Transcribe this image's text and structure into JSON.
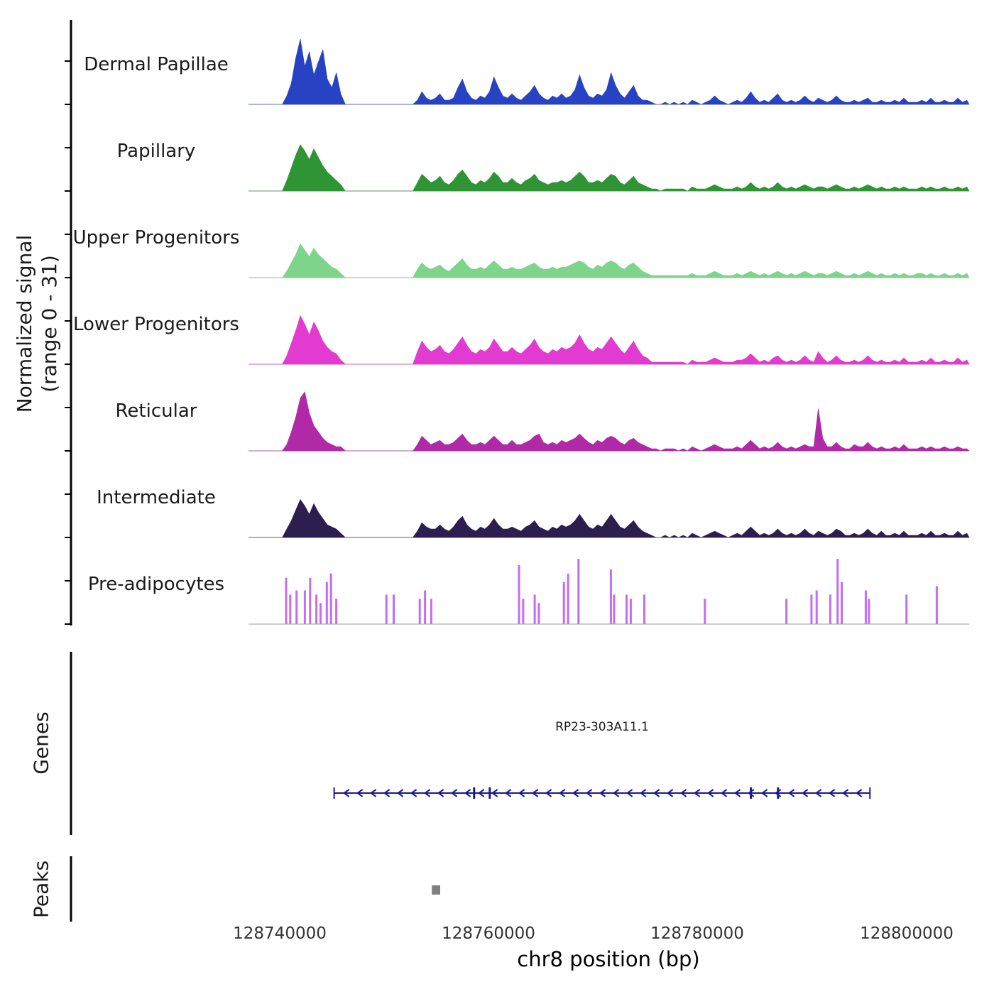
{
  "axis_left": {
    "label_line1": "Normalized signal",
    "label_line2": "(range 0 - 31)",
    "genes_label": "Genes",
    "peaks_label": "Peaks"
  },
  "x_axis": {
    "label": "chr8 position (bp)",
    "ticks": [
      128740000,
      128760000,
      128780000,
      128800000
    ],
    "tick_labels": [
      "128740000",
      "128760000",
      "128780000",
      "128800000"
    ],
    "xlim": [
      128737000,
      128806000
    ]
  },
  "chart_data": {
    "type": "area",
    "subtype": "genome-signal-tracks",
    "chromosome": "chr8",
    "x_start": 128737000,
    "x_end": 128806000,
    "bins": 160,
    "ylim": [
      0,
      31
    ],
    "tracks": [
      {
        "name": "Dermal Papillae",
        "color": "#2743c3",
        "values": [
          0,
          0,
          0,
          0,
          0,
          0,
          0,
          0,
          4,
          10,
          22,
          31,
          18,
          25,
          14,
          20,
          26,
          12,
          8,
          15,
          5,
          0,
          0,
          0,
          0,
          0,
          0,
          0,
          0,
          0,
          0,
          0,
          0,
          0,
          0,
          0,
          0,
          2,
          6,
          3,
          2,
          3,
          5,
          2,
          2,
          3,
          8,
          12,
          6,
          3,
          2,
          4,
          3,
          6,
          13,
          8,
          4,
          3,
          5,
          3,
          2,
          4,
          6,
          9,
          5,
          3,
          2,
          4,
          3,
          5,
          3,
          4,
          7,
          14,
          8,
          4,
          3,
          5,
          4,
          7,
          15,
          9,
          5,
          3,
          6,
          9,
          4,
          2,
          2,
          1,
          0,
          0,
          1,
          0,
          1,
          0,
          1,
          0,
          2,
          1,
          0,
          1,
          2,
          4,
          2,
          1,
          0,
          1,
          2,
          1,
          3,
          6,
          3,
          1,
          2,
          1,
          3,
          5,
          2,
          1,
          2,
          1,
          2,
          4,
          2,
          1,
          3,
          2,
          1,
          2,
          4,
          2,
          1,
          1,
          2,
          1,
          2,
          3,
          1,
          1,
          2,
          1,
          1,
          2,
          1,
          3,
          1,
          1,
          1,
          2,
          1,
          3,
          1,
          1,
          2,
          1,
          1,
          3,
          1,
          2
        ]
      },
      {
        "name": "Papillary",
        "color": "#2e9434",
        "values": [
          0,
          0,
          0,
          0,
          0,
          0,
          0,
          0,
          5,
          11,
          17,
          22,
          19,
          15,
          20,
          16,
          12,
          9,
          7,
          5,
          3,
          0,
          0,
          0,
          0,
          0,
          0,
          0,
          0,
          0,
          0,
          0,
          0,
          0,
          0,
          0,
          0,
          4,
          8,
          6,
          4,
          5,
          7,
          4,
          3,
          5,
          8,
          10,
          7,
          4,
          3,
          5,
          4,
          6,
          9,
          7,
          4,
          4,
          6,
          4,
          3,
          5,
          6,
          8,
          5,
          4,
          3,
          4,
          4,
          5,
          4,
          5,
          7,
          9,
          7,
          4,
          4,
          5,
          4,
          6,
          8,
          7,
          4,
          3,
          5,
          7,
          4,
          3,
          2,
          1,
          1,
          0,
          1,
          1,
          1,
          1,
          1,
          0,
          2,
          1,
          1,
          1,
          2,
          3,
          2,
          1,
          1,
          1,
          2,
          1,
          2,
          4,
          2,
          1,
          2,
          1,
          2,
          4,
          2,
          1,
          2,
          1,
          2,
          3,
          2,
          1,
          2,
          2,
          1,
          2,
          3,
          2,
          1,
          1,
          2,
          1,
          2,
          3,
          2,
          1,
          2,
          1,
          1,
          2,
          1,
          2,
          1,
          1,
          1,
          2,
          1,
          2,
          1,
          1,
          2,
          1,
          1,
          2,
          1,
          2
        ]
      },
      {
        "name": "Upper Progenitors",
        "color": "#7ed48a",
        "values": [
          0,
          0,
          0,
          0,
          0,
          0,
          0,
          0,
          3,
          7,
          11,
          16,
          13,
          10,
          14,
          11,
          9,
          7,
          5,
          4,
          2,
          0,
          0,
          0,
          0,
          0,
          0,
          0,
          0,
          0,
          0,
          0,
          0,
          0,
          0,
          0,
          0,
          4,
          7,
          5,
          4,
          5,
          6,
          4,
          3,
          5,
          7,
          9,
          6,
          4,
          4,
          5,
          4,
          6,
          8,
          6,
          4,
          4,
          5,
          4,
          4,
          5,
          6,
          7,
          5,
          4,
          4,
          5,
          4,
          5,
          5,
          6,
          7,
          8,
          7,
          5,
          4,
          6,
          5,
          7,
          8,
          7,
          5,
          4,
          6,
          7,
          5,
          3,
          2,
          1,
          1,
          1,
          1,
          1,
          1,
          1,
          1,
          1,
          2,
          1,
          1,
          1,
          2,
          3,
          2,
          1,
          1,
          1,
          2,
          1,
          2,
          3,
          2,
          1,
          2,
          1,
          2,
          3,
          2,
          1,
          2,
          1,
          2,
          3,
          2,
          1,
          2,
          2,
          1,
          2,
          3,
          2,
          1,
          1,
          2,
          1,
          2,
          3,
          2,
          1,
          2,
          1,
          1,
          2,
          1,
          2,
          1,
          1,
          2,
          2,
          1,
          2,
          1,
          1,
          2,
          1,
          1,
          2,
          1,
          2
        ]
      },
      {
        "name": "Lower Progenitors",
        "color": "#e33ad2",
        "values": [
          0,
          0,
          0,
          0,
          0,
          0,
          0,
          0,
          4,
          10,
          16,
          23,
          19,
          14,
          20,
          16,
          11,
          8,
          6,
          5,
          2,
          0,
          0,
          0,
          0,
          0,
          0,
          0,
          0,
          0,
          0,
          0,
          0,
          0,
          0,
          0,
          0,
          6,
          11,
          8,
          6,
          7,
          9,
          6,
          5,
          7,
          10,
          13,
          9,
          6,
          5,
          7,
          6,
          8,
          12,
          9,
          6,
          6,
          8,
          6,
          5,
          7,
          9,
          12,
          8,
          6,
          5,
          7,
          6,
          8,
          7,
          8,
          10,
          14,
          10,
          7,
          6,
          8,
          7,
          10,
          13,
          10,
          7,
          5,
          8,
          11,
          7,
          4,
          3,
          1,
          1,
          1,
          1,
          1,
          1,
          1,
          1,
          0,
          2,
          1,
          1,
          1,
          2,
          3,
          2,
          1,
          1,
          1,
          2,
          2,
          3,
          5,
          3,
          1,
          2,
          1,
          3,
          4,
          2,
          1,
          2,
          1,
          2,
          4,
          2,
          1,
          6,
          3,
          1,
          2,
          4,
          2,
          1,
          1,
          2,
          1,
          2,
          4,
          2,
          1,
          2,
          1,
          1,
          2,
          1,
          3,
          1,
          1,
          1,
          2,
          1,
          3,
          1,
          1,
          2,
          1,
          1,
          3,
          1,
          2
        ]
      },
      {
        "name": "Reticular",
        "color": "#b02aa8",
        "values": [
          0,
          0,
          0,
          0,
          0,
          0,
          0,
          0,
          3,
          9,
          16,
          25,
          28,
          18,
          12,
          9,
          6,
          4,
          3,
          2,
          2,
          0,
          0,
          0,
          0,
          0,
          0,
          0,
          0,
          0,
          0,
          0,
          0,
          0,
          0,
          0,
          0,
          3,
          7,
          5,
          3,
          4,
          5,
          3,
          3,
          4,
          6,
          8,
          5,
          3,
          3,
          4,
          3,
          5,
          7,
          5,
          3,
          3,
          5,
          3,
          3,
          4,
          5,
          7,
          8,
          4,
          3,
          4,
          3,
          5,
          4,
          5,
          6,
          8,
          6,
          4,
          3,
          5,
          4,
          6,
          7,
          6,
          4,
          3,
          5,
          6,
          4,
          3,
          2,
          1,
          1,
          0,
          1,
          1,
          1,
          0,
          1,
          0,
          2,
          1,
          0,
          1,
          2,
          3,
          2,
          1,
          1,
          1,
          2,
          1,
          3,
          5,
          3,
          1,
          2,
          1,
          2,
          4,
          2,
          1,
          2,
          1,
          2,
          3,
          2,
          2,
          20,
          6,
          2,
          2,
          4,
          2,
          1,
          1,
          3,
          2,
          2,
          4,
          2,
          1,
          2,
          1,
          1,
          2,
          1,
          3,
          1,
          1,
          1,
          2,
          1,
          2,
          1,
          1,
          2,
          1,
          1,
          2,
          1,
          1
        ]
      },
      {
        "name": "Intermediate",
        "color": "#2c1e4f",
        "values": [
          0,
          0,
          0,
          0,
          0,
          0,
          0,
          0,
          4,
          8,
          13,
          18,
          15,
          11,
          16,
          12,
          9,
          6,
          5,
          4,
          2,
          0,
          0,
          0,
          0,
          0,
          0,
          0,
          0,
          0,
          0,
          0,
          0,
          0,
          0,
          0,
          0,
          3,
          7,
          5,
          4,
          4,
          6,
          4,
          3,
          5,
          8,
          10,
          6,
          4,
          3,
          5,
          4,
          6,
          9,
          6,
          4,
          4,
          5,
          4,
          3,
          5,
          6,
          8,
          5,
          4,
          3,
          5,
          4,
          6,
          5,
          6,
          8,
          11,
          8,
          5,
          4,
          6,
          5,
          8,
          11,
          8,
          5,
          4,
          6,
          8,
          5,
          3,
          2,
          1,
          0,
          0,
          1,
          0,
          1,
          0,
          1,
          0,
          2,
          1,
          0,
          1,
          2,
          3,
          2,
          1,
          0,
          1,
          2,
          1,
          3,
          5,
          3,
          1,
          2,
          1,
          2,
          4,
          2,
          1,
          2,
          1,
          2,
          4,
          2,
          1,
          3,
          2,
          1,
          2,
          4,
          3,
          1,
          1,
          2,
          1,
          2,
          4,
          2,
          1,
          3,
          1,
          1,
          2,
          1,
          3,
          1,
          1,
          1,
          2,
          1,
          3,
          1,
          1,
          2,
          1,
          1,
          3,
          1,
          2
        ]
      },
      {
        "name": "Pre-adipocytes",
        "color": "#c46cf2",
        "style": "spikes",
        "spikes": [
          [
            128740600,
            22
          ],
          [
            128741000,
            14
          ],
          [
            128741600,
            16
          ],
          [
            128742400,
            16
          ],
          [
            128742900,
            22
          ],
          [
            128743500,
            14
          ],
          [
            128743900,
            10
          ],
          [
            128744500,
            20
          ],
          [
            128744900,
            24
          ],
          [
            128745400,
            12
          ],
          [
            128750200,
            14
          ],
          [
            128750900,
            14
          ],
          [
            128753400,
            12
          ],
          [
            128753900,
            16
          ],
          [
            128754500,
            12
          ],
          [
            128762900,
            28
          ],
          [
            128763300,
            12
          ],
          [
            128764400,
            14
          ],
          [
            128764800,
            10
          ],
          [
            128767200,
            20
          ],
          [
            128767600,
            24
          ],
          [
            128768600,
            31
          ],
          [
            128771700,
            26
          ],
          [
            128772000,
            14
          ],
          [
            128773200,
            14
          ],
          [
            128773600,
            12
          ],
          [
            128774900,
            14
          ],
          [
            128780700,
            12
          ],
          [
            128788500,
            12
          ],
          [
            128790900,
            14
          ],
          [
            128791400,
            16
          ],
          [
            128792700,
            14
          ],
          [
            128793400,
            31
          ],
          [
            128793800,
            20
          ],
          [
            128796100,
            16
          ],
          [
            128796400,
            12
          ],
          [
            128800000,
            14
          ],
          [
            128802900,
            18
          ]
        ]
      }
    ],
    "genes": {
      "label": "RP23-303A11.1",
      "start": 128745200,
      "end": 128796500,
      "strand": "-",
      "color": "#1a1a8f",
      "exons": [
        128758600,
        128760100,
        128785100,
        128787700
      ]
    },
    "peaks": [
      {
        "start": 128754550,
        "end": 128755350,
        "color": "#7f7f7f"
      }
    ]
  }
}
